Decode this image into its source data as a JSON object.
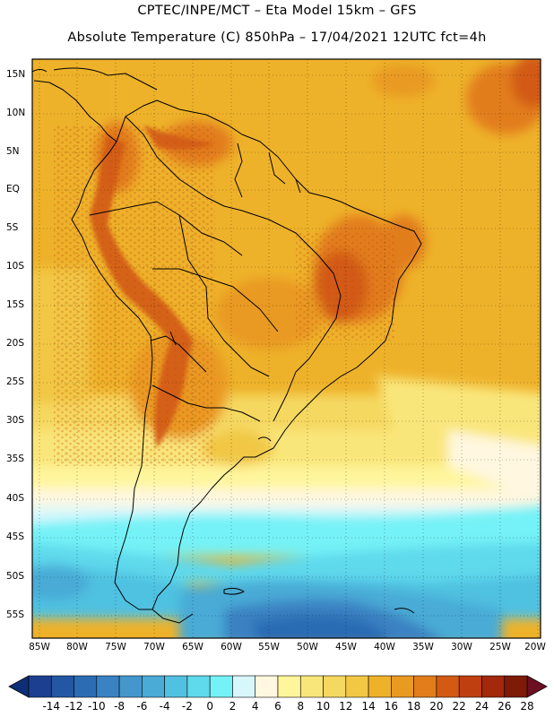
{
  "header": {
    "line1": "CPTEC/INPE/MCT –  Eta Model 15km – GFS",
    "line2": "Absolute Temperature (C) 850hPa – 17/04/2021 12UTC fct=4h"
  },
  "map": {
    "lat_labels": [
      "15N",
      "10N",
      "5N",
      "EQ",
      "5S",
      "10S",
      "15S",
      "20S",
      "25S",
      "30S",
      "35S",
      "40S",
      "45S",
      "50S",
      "55S"
    ],
    "lon_labels": [
      "85W",
      "80W",
      "75W",
      "70W",
      "65W",
      "60W",
      "55W",
      "50W",
      "45W",
      "40W",
      "35W",
      "30W",
      "25W",
      "20W"
    ]
  },
  "colorbar": {
    "labels": [
      "-14",
      "-12",
      "-10",
      "-8",
      "-6",
      "-4",
      "-2",
      "0",
      "2",
      "4",
      "6",
      "8",
      "10",
      "12",
      "14",
      "16",
      "18",
      "20",
      "22",
      "24",
      "26",
      "28"
    ],
    "colors": [
      "#1c3f8f",
      "#2457a3",
      "#2c6cb4",
      "#3a82c2",
      "#4497cb",
      "#4aabd6",
      "#50c1e1",
      "#5fd9ec",
      "#74f2f7",
      "#d7f7fb",
      "#fff7df",
      "#fff59b",
      "#f9e67a",
      "#f5d860",
      "#f1c744",
      "#eeb22a",
      "#e99a21",
      "#e27d1a",
      "#d25a13",
      "#bf3f10",
      "#a3280c",
      "#7d1b08"
    ],
    "low_end_color": "#0e2f78",
    "high_end_color": "#6c0f22"
  }
}
